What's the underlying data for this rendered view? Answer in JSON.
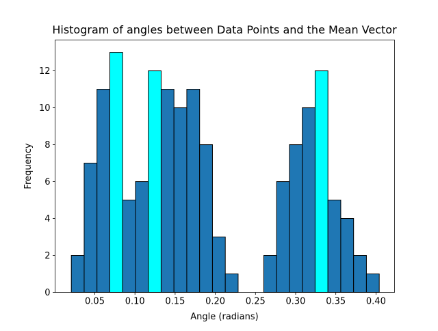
{
  "chart_data": {
    "type": "bar",
    "title": "Histogram of angles between Data Points and the Mean Vector",
    "xlabel": "Angle (radians)",
    "ylabel": "Frequency",
    "xlim": [
      0.0006,
      0.4231
    ],
    "ylim": [
      0,
      13.67
    ],
    "bin_start": 0.0208,
    "bin_width": 0.01597,
    "values": [
      2,
      7,
      11,
      13,
      5,
      6,
      12,
      11,
      10,
      11,
      8,
      3,
      1,
      0,
      0,
      2,
      6,
      8,
      10,
      12,
      5,
      4,
      2,
      1
    ],
    "highlighted_bins": [
      3,
      6,
      19
    ],
    "xticks": [
      0.05,
      0.1,
      0.15,
      0.2,
      0.25,
      0.3,
      0.35,
      0.4
    ],
    "xtick_labels": [
      "0.05",
      "0.10",
      "0.15",
      "0.20",
      "0.25",
      "0.30",
      "0.35",
      "0.40"
    ],
    "yticks": [
      0,
      2,
      4,
      6,
      8,
      10,
      12
    ],
    "ytick_labels": [
      "0",
      "2",
      "4",
      "6",
      "8",
      "10",
      "12"
    ],
    "colors": {
      "bar": "#1f77b4",
      "highlight": "#00ffff",
      "edge": "#000000"
    },
    "grid": false
  }
}
